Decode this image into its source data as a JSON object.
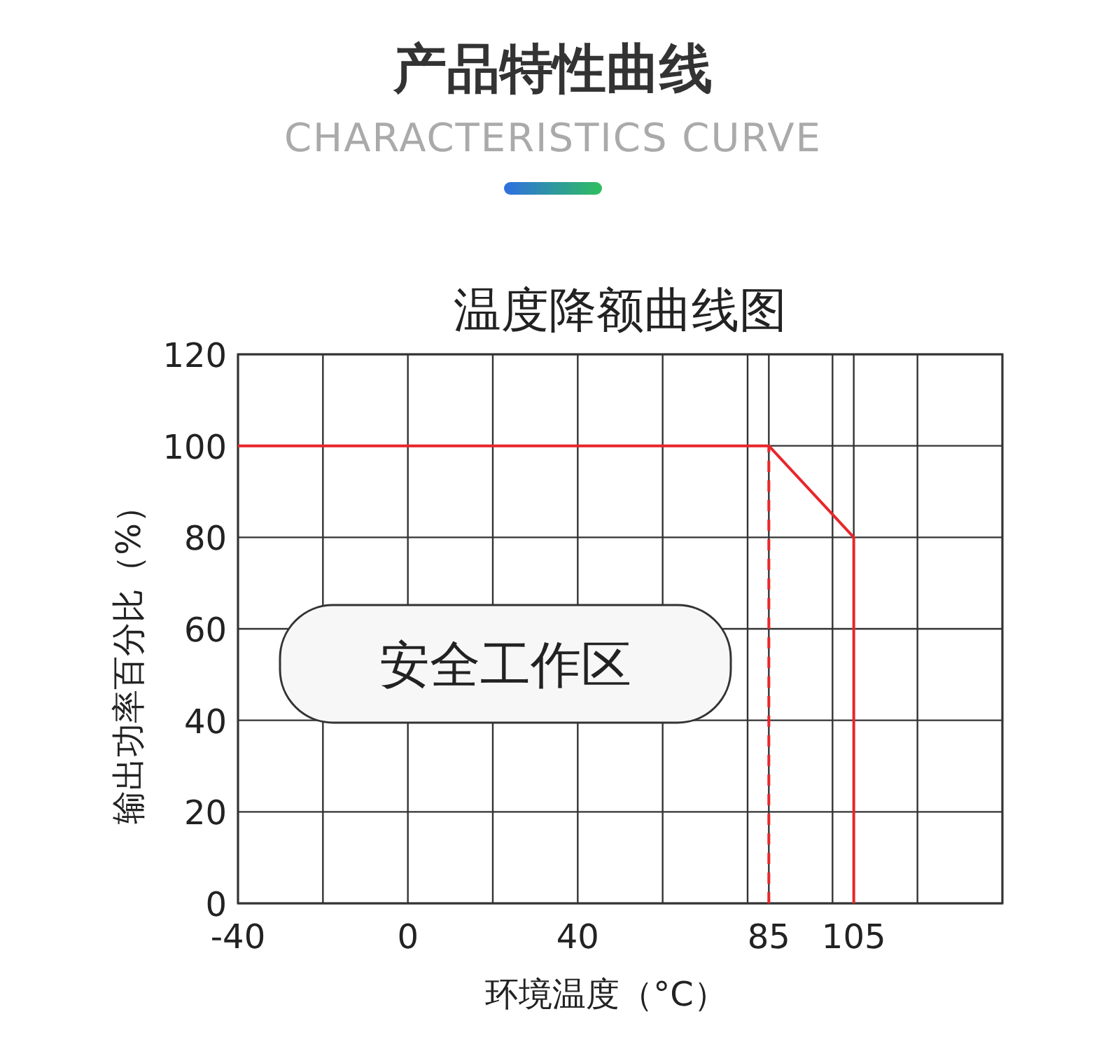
{
  "chart_data": {
    "type": "line",
    "title": "产品特性曲线",
    "subtitle": "CHARACTERISTICS CURVE",
    "xlabel": "环境温度（°C）",
    "ylabel": "输出功率百分比（%）",
    "annotations": [
      "温度降额曲线图",
      "安全工作区"
    ],
    "xlim": [
      -40,
      140
    ],
    "ylim": [
      0,
      120
    ],
    "xticks": [
      -40,
      {
        "value": -20,
        "label": null
      },
      0,
      {
        "value": 20,
        "label": null
      },
      40,
      {
        "value": 60,
        "label": null
      },
      {
        "value": 80,
        "label": null
      },
      85,
      {
        "value": 100,
        "label": null
      },
      105,
      {
        "value": 120,
        "label": null
      },
      {
        "value": 140,
        "label": null
      }
    ],
    "yticks": [
      0,
      20,
      40,
      60,
      80,
      100,
      120
    ],
    "grid": true,
    "series": [
      {
        "color": "#e8262b",
        "line_style": "solid",
        "x": [
          -40,
          85,
          105,
          105
        ],
        "values": [
          100,
          100,
          80,
          0
        ]
      },
      {
        "color": "#e8262b",
        "line_style": "dashed",
        "x": [
          85,
          85
        ],
        "values": [
          0,
          100
        ]
      }
    ]
  }
}
